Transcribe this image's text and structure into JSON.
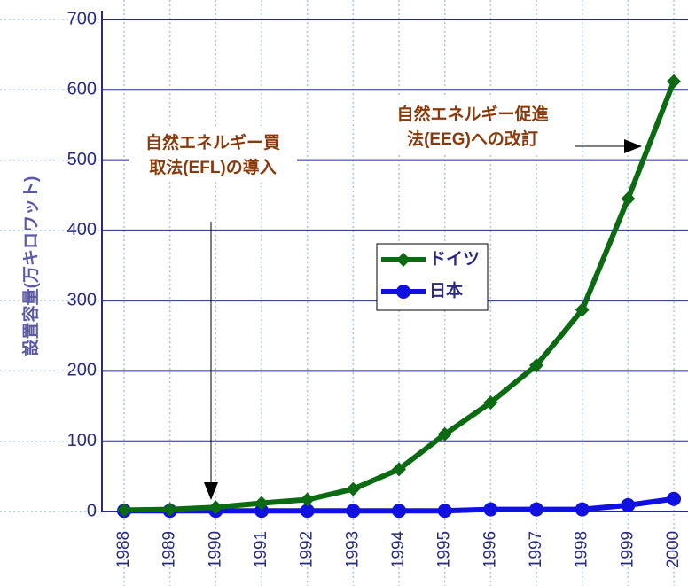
{
  "chart_data": {
    "type": "line",
    "y_label": "設置容量(万キロワット)",
    "categories": [
      "1988",
      "1989",
      "1990",
      "1991",
      "1992",
      "1993",
      "1994",
      "1995",
      "1996",
      "1997",
      "1998",
      "1999",
      "2000"
    ],
    "series": [
      {
        "name": "ドイツ",
        "color": "#0b6a12",
        "marker": "diamond",
        "values": [
          2,
          3,
          6,
          12,
          17,
          32,
          60,
          110,
          155,
          208,
          287,
          445,
          612
        ]
      },
      {
        "name": "日本",
        "color": "#1010e0",
        "marker": "circle",
        "values": [
          1,
          1,
          1,
          1,
          1,
          1,
          1,
          1,
          3,
          3,
          3,
          9,
          18
        ]
      }
    ],
    "ylim": [
      0,
      700
    ],
    "yticks": [
      0,
      100,
      200,
      300,
      400,
      500,
      600,
      700
    ],
    "grid": true,
    "annotations": [
      {
        "lines": [
          "自然エネルギー買",
          "取法(EFL)の導入"
        ]
      },
      {
        "lines": [
          "自然エネルギー促進",
          "法(EEG)への改訂"
        ]
      }
    ]
  }
}
